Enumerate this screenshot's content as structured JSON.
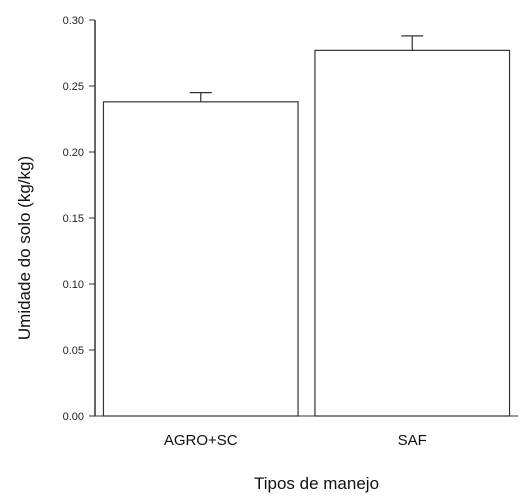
{
  "chart_data": {
    "type": "bar",
    "categories": [
      "AGRO+SC",
      "SAF"
    ],
    "values": [
      0.238,
      0.277
    ],
    "errors": [
      0.007,
      0.011
    ],
    "xlabel": "Tipos de manejo",
    "ylabel": "Umidade do solo (kg/kg)",
    "ylim": [
      0.0,
      0.3
    ],
    "yticks": [
      "0.00",
      "0.05",
      "0.10",
      "0.15",
      "0.20",
      "0.25",
      "0.30"
    ],
    "grid": false,
    "colors": {
      "bar_fill": "#ffffff",
      "bar_stroke": "#333333",
      "axis": "#333333"
    }
  }
}
